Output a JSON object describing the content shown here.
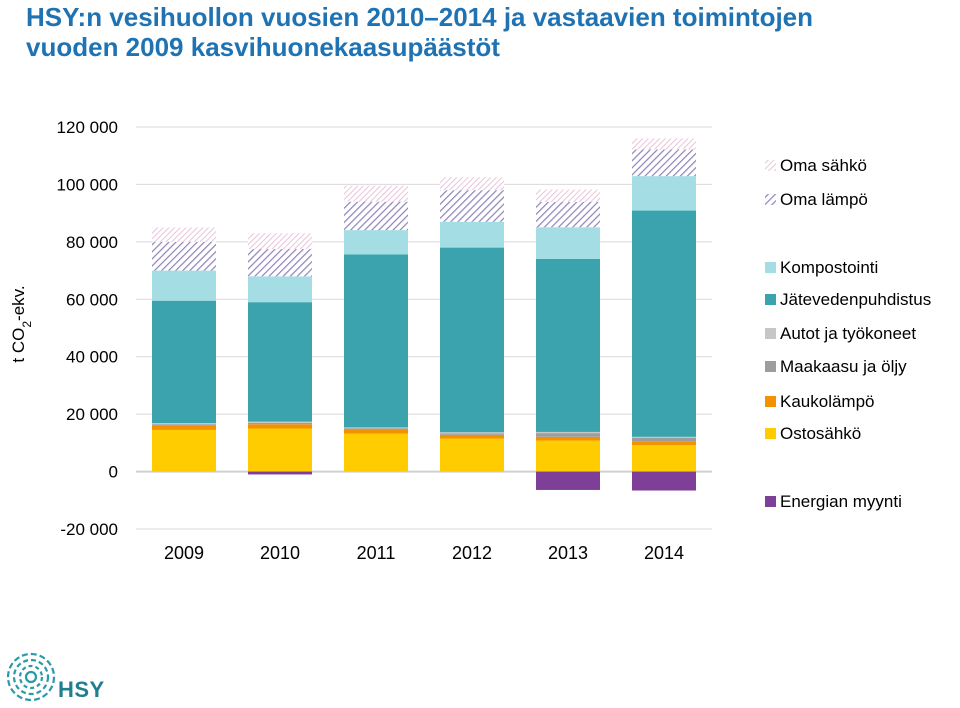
{
  "title_line1": "HSY:n vesihuollon vuosien 2010–2014 ja vastaavien toimintojen",
  "title_line2": "vuoden 2009 kasvihuonekaasupäästöt",
  "logo_text": "HSY",
  "chart_data": {
    "type": "bar",
    "stacked": true,
    "categories": [
      "2009",
      "2010",
      "2011",
      "2012",
      "2013",
      "2014"
    ],
    "ylabel": "t CO2-ekv.",
    "ylim": [
      -20000,
      120000
    ],
    "yticks": [
      {
        "value": 120000,
        "label": "120 000"
      },
      {
        "value": 100000,
        "label": "100 000"
      },
      {
        "value": 80000,
        "label": "80 000"
      },
      {
        "value": 60000,
        "label": "60 000"
      },
      {
        "value": 40000,
        "label": "40 000"
      },
      {
        "value": 20000,
        "label": "20 000"
      },
      {
        "value": 0,
        "label": "0"
      },
      {
        "value": -20000,
        "label": "-20 000"
      }
    ],
    "grid": true,
    "legend_position": "right",
    "series": [
      {
        "name": "Ostosähkö",
        "color": "#ffcc00",
        "pattern": "solid",
        "values": [
          14500,
          15000,
          13200,
          11500,
          10800,
          9200
        ]
      },
      {
        "name": "Kaukolämpö",
        "color": "#f39200",
        "pattern": "solid",
        "values": [
          1500,
          1500,
          1300,
          1300,
          1300,
          1200
        ]
      },
      {
        "name": "Maakaasu ja öljy",
        "color": "#9d9d9c",
        "pattern": "solid",
        "values": [
          500,
          500,
          500,
          500,
          1300,
          1300
        ]
      },
      {
        "name": "Autot ja työkoneet",
        "color": "#c6c6c6",
        "pattern": "solid",
        "values": [
          400,
          400,
          400,
          400,
          400,
          400
        ]
      },
      {
        "name": "Jätevedenpuhdistus",
        "color": "#3aa3ad",
        "pattern": "solid",
        "values": [
          42600,
          41600,
          60200,
          64300,
          60300,
          78800
        ]
      },
      {
        "name": "Kompostointi",
        "color": "#a4dde4",
        "pattern": "solid",
        "values": [
          10500,
          9000,
          8500,
          9000,
          11000,
          12000
        ]
      },
      {
        "name": "Oma lämpö",
        "color": "#b7aed0",
        "pattern": "hatch",
        "values": [
          10000,
          9500,
          9900,
          11000,
          8800,
          9300
        ]
      },
      {
        "name": "Oma sähkö",
        "color": "#e8c6dc",
        "pattern": "dots",
        "values": [
          5000,
          5500,
          5500,
          4500,
          4300,
          3800
        ]
      },
      {
        "name": "Energian myynti",
        "color": "#7e3f98",
        "pattern": "solid",
        "values": [
          0,
          -1000,
          0,
          0,
          -6400,
          -6600
        ]
      }
    ],
    "legend_order": [
      "Oma sähkö",
      "Oma lämpö",
      "Kompostointi",
      "Jätevedenpuhdistus",
      "Autot ja työkoneet",
      "Maakaasu ja öljy",
      "Kaukolämpö",
      "Ostosähkö",
      "Energian myynti"
    ]
  }
}
